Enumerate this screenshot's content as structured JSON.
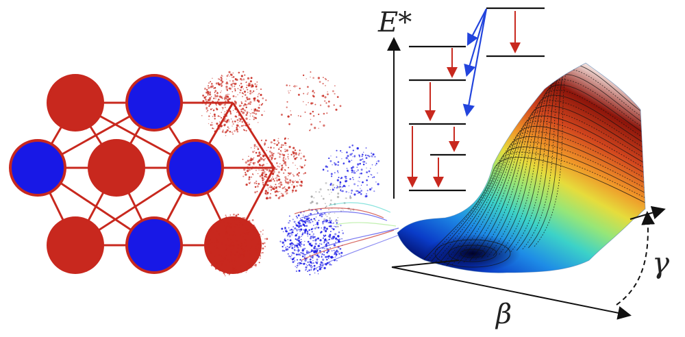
{
  "labels": {
    "energy_axis": "E*",
    "beta_axis": "β",
    "gamma_axis": "γ"
  },
  "lattice": {
    "rows": [
      [
        "red",
        "blue"
      ],
      [
        "blue",
        "red",
        "blue"
      ],
      [
        "red",
        "blue",
        "red"
      ]
    ]
  },
  "colors": {
    "nucleon_red": "#c8281e",
    "nucleon_blue": "#1818e6",
    "lattice_line": "#c8281e",
    "transition_down": "#c8281e",
    "transition_blue": "#2244dd",
    "level_line": "#111111"
  },
  "surface_colormap": [
    "#00004a",
    "#0a3cc8",
    "#1e8ce6",
    "#3cd2c8",
    "#96e678",
    "#e6dc3c",
    "#f09628",
    "#d2461e",
    "#8c140a",
    "#5a0a05"
  ]
}
